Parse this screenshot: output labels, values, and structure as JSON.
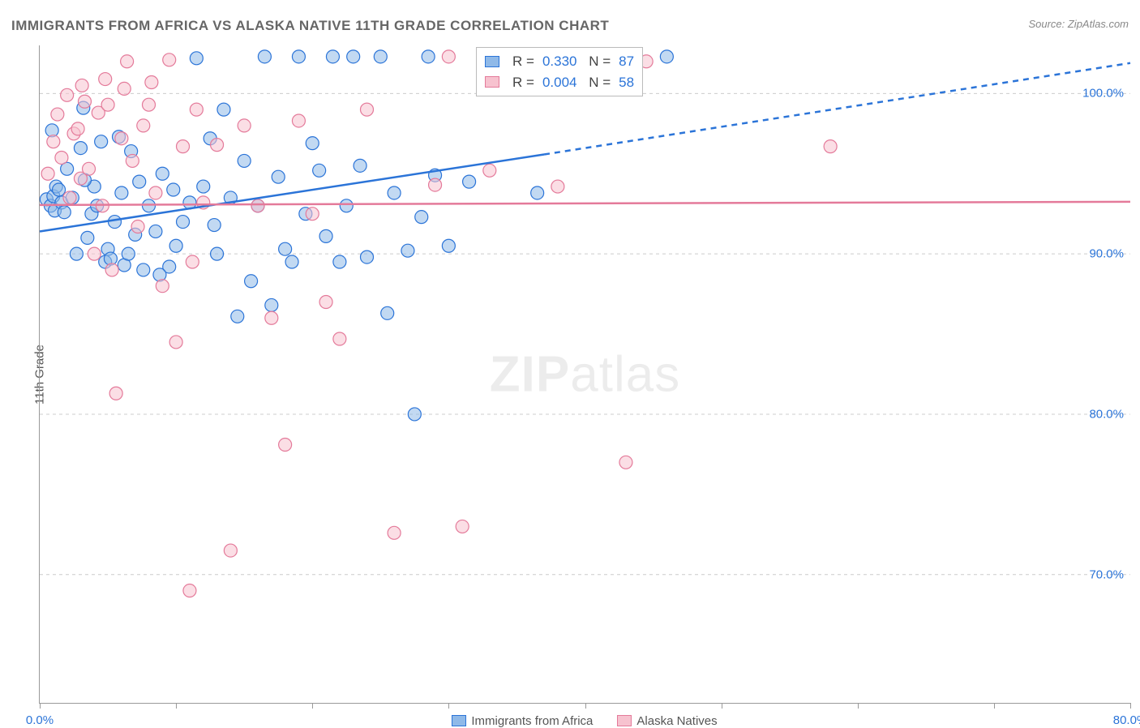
{
  "title": "IMMIGRANTS FROM AFRICA VS ALASKA NATIVE 11TH GRADE CORRELATION CHART",
  "source": "Source: ZipAtlas.com",
  "y_axis_label": "11th Grade",
  "watermark_bold": "ZIP",
  "watermark_rest": "atlas",
  "chart": {
    "type": "scatter",
    "background_color": "#ffffff",
    "grid_color": "#cccccc",
    "axis_color": "#999999",
    "tick_label_color": "#2b74d8",
    "xlim": [
      0,
      80
    ],
    "ylim": [
      62,
      103
    ],
    "xticks": [
      0,
      10,
      20,
      30,
      40,
      50,
      60,
      70,
      80
    ],
    "xtick_labels": {
      "0": "0.0%",
      "80": "80.0%"
    },
    "yticks": [
      70,
      80,
      90,
      100
    ],
    "ytick_labels": {
      "70": "70.0%",
      "80": "80.0%",
      "90": "90.0%",
      "100": "100.0%"
    },
    "marker_radius": 8,
    "marker_opacity": 0.55,
    "series": [
      {
        "id": "africa",
        "label": "Immigrants from Africa",
        "fill_color": "#8fb9e8",
        "stroke_color": "#2b74d8",
        "R": "0.330",
        "N": "87",
        "trend": {
          "color": "#2b74d8",
          "width": 2.5,
          "solid": {
            "x1": 0,
            "y1": 91.4,
            "x2": 37,
            "y2": 96.2
          },
          "dashed": {
            "x1": 37,
            "y1": 96.2,
            "x2": 80,
            "y2": 101.9
          }
        },
        "points": [
          [
            0.5,
            93.4
          ],
          [
            0.8,
            93.0
          ],
          [
            1.0,
            93.6
          ],
          [
            1.1,
            92.7
          ],
          [
            1.2,
            94.2
          ],
          [
            0.9,
            97.7
          ],
          [
            1.4,
            94.0
          ],
          [
            1.6,
            93.2
          ],
          [
            1.8,
            92.6
          ],
          [
            2.0,
            95.3
          ],
          [
            2.4,
            93.5
          ],
          [
            2.7,
            90.0
          ],
          [
            3.0,
            96.6
          ],
          [
            3.2,
            99.1
          ],
          [
            3.5,
            91.0
          ],
          [
            3.8,
            92.5
          ],
          [
            4.0,
            94.2
          ],
          [
            4.2,
            93.0
          ],
          [
            4.5,
            97.0
          ],
          [
            4.8,
            89.5
          ],
          [
            5.0,
            90.3
          ],
          [
            5.5,
            92.0
          ],
          [
            5.8,
            97.3
          ],
          [
            6.0,
            93.8
          ],
          [
            6.2,
            89.3
          ],
          [
            6.5,
            90.0
          ],
          [
            7.0,
            91.2
          ],
          [
            7.3,
            94.5
          ],
          [
            7.6,
            89.0
          ],
          [
            8.0,
            93.0
          ],
          [
            8.5,
            91.4
          ],
          [
            9.0,
            95.0
          ],
          [
            9.5,
            89.2
          ],
          [
            10.0,
            90.5
          ],
          [
            10.5,
            92.0
          ],
          [
            11.0,
            93.2
          ],
          [
            11.5,
            102.2
          ],
          [
            12.0,
            94.2
          ],
          [
            12.5,
            97.2
          ],
          [
            13.0,
            90.0
          ],
          [
            13.5,
            99.0
          ],
          [
            14.0,
            93.5
          ],
          [
            14.5,
            86.1
          ],
          [
            15.0,
            95.8
          ],
          [
            15.5,
            88.3
          ],
          [
            16.0,
            93.0
          ],
          [
            16.5,
            102.3
          ],
          [
            17.0,
            86.8
          ],
          [
            17.5,
            94.8
          ],
          [
            18.0,
            90.3
          ],
          [
            18.5,
            89.5
          ],
          [
            19.0,
            102.3
          ],
          [
            19.5,
            92.5
          ],
          [
            20.0,
            96.9
          ],
          [
            20.5,
            95.2
          ],
          [
            21.0,
            91.1
          ],
          [
            21.5,
            102.3
          ],
          [
            22.0,
            89.5
          ],
          [
            22.5,
            93.0
          ],
          [
            23.0,
            102.3
          ],
          [
            23.5,
            95.5
          ],
          [
            24.0,
            89.8
          ],
          [
            25.0,
            102.3
          ],
          [
            25.5,
            86.3
          ],
          [
            26.0,
            93.8
          ],
          [
            27.0,
            90.2
          ],
          [
            27.5,
            80.0
          ],
          [
            28.0,
            92.3
          ],
          [
            28.5,
            102.3
          ],
          [
            29.0,
            94.9
          ],
          [
            30.0,
            90.5
          ],
          [
            31.5,
            94.5
          ],
          [
            33.0,
            102.0
          ],
          [
            34.0,
            102.3
          ],
          [
            36.0,
            102.0
          ],
          [
            38.0,
            102.3
          ],
          [
            40.0,
            102.0
          ],
          [
            41.5,
            102.3
          ],
          [
            43.0,
            102.3
          ],
          [
            46.0,
            102.3
          ],
          [
            36.5,
            93.8
          ],
          [
            3.3,
            94.6
          ],
          [
            5.2,
            89.7
          ],
          [
            8.8,
            88.7
          ],
          [
            12.8,
            91.8
          ],
          [
            9.8,
            94.0
          ],
          [
            6.7,
            96.4
          ]
        ]
      },
      {
        "id": "alaska",
        "label": "Alaska Natives",
        "fill_color": "#f7c2cf",
        "stroke_color": "#e47a9a",
        "R": "0.004",
        "N": "58",
        "trend": {
          "color": "#e47a9a",
          "width": 2.5,
          "solid": {
            "x1": 0,
            "y1": 93.05,
            "x2": 80,
            "y2": 93.25
          }
        },
        "points": [
          [
            0.6,
            95.0
          ],
          [
            1.0,
            97.0
          ],
          [
            1.3,
            98.7
          ],
          [
            1.6,
            96.0
          ],
          [
            2.0,
            99.9
          ],
          [
            2.2,
            93.5
          ],
          [
            2.5,
            97.5
          ],
          [
            2.8,
            97.8
          ],
          [
            3.0,
            94.7
          ],
          [
            3.3,
            99.5
          ],
          [
            3.6,
            95.3
          ],
          [
            4.0,
            90.0
          ],
          [
            4.3,
            98.8
          ],
          [
            4.6,
            93.0
          ],
          [
            5.0,
            99.3
          ],
          [
            5.3,
            89.0
          ],
          [
            5.6,
            81.3
          ],
          [
            6.0,
            97.2
          ],
          [
            6.4,
            102.0
          ],
          [
            6.8,
            95.8
          ],
          [
            7.2,
            91.7
          ],
          [
            7.6,
            98.0
          ],
          [
            8.0,
            99.3
          ],
          [
            8.5,
            93.8
          ],
          [
            9.0,
            88.0
          ],
          [
            9.5,
            102.1
          ],
          [
            10.0,
            84.5
          ],
          [
            10.5,
            96.7
          ],
          [
            11.0,
            69.0
          ],
          [
            11.5,
            99.0
          ],
          [
            12.0,
            93.2
          ],
          [
            13.0,
            96.8
          ],
          [
            14.0,
            71.5
          ],
          [
            15.0,
            98.0
          ],
          [
            16.0,
            93.0
          ],
          [
            17.0,
            86.0
          ],
          [
            18.0,
            78.1
          ],
          [
            19.0,
            98.3
          ],
          [
            20.0,
            92.5
          ],
          [
            21.0,
            87.0
          ],
          [
            22.0,
            84.7
          ],
          [
            24.0,
            99.0
          ],
          [
            26.0,
            72.6
          ],
          [
            29.0,
            94.3
          ],
          [
            30.0,
            102.3
          ],
          [
            31.0,
            73.0
          ],
          [
            33.0,
            95.2
          ],
          [
            38.0,
            94.2
          ],
          [
            40.0,
            102.3
          ],
          [
            42.0,
            102.0
          ],
          [
            43.0,
            77.0
          ],
          [
            44.5,
            102.0
          ],
          [
            58.0,
            96.7
          ],
          [
            3.1,
            100.5
          ],
          [
            4.8,
            100.9
          ],
          [
            8.2,
            100.7
          ],
          [
            6.2,
            100.3
          ],
          [
            11.2,
            89.5
          ]
        ]
      }
    ]
  },
  "bottom_legend": [
    {
      "label": "Immigrants from Africa",
      "fill": "#8fb9e8",
      "border": "#2b74d8"
    },
    {
      "label": "Alaska Natives",
      "fill": "#f7c2cf",
      "border": "#e47a9a"
    }
  ],
  "stats_labels": {
    "r": "R",
    "eq": "=",
    "n": "N"
  }
}
